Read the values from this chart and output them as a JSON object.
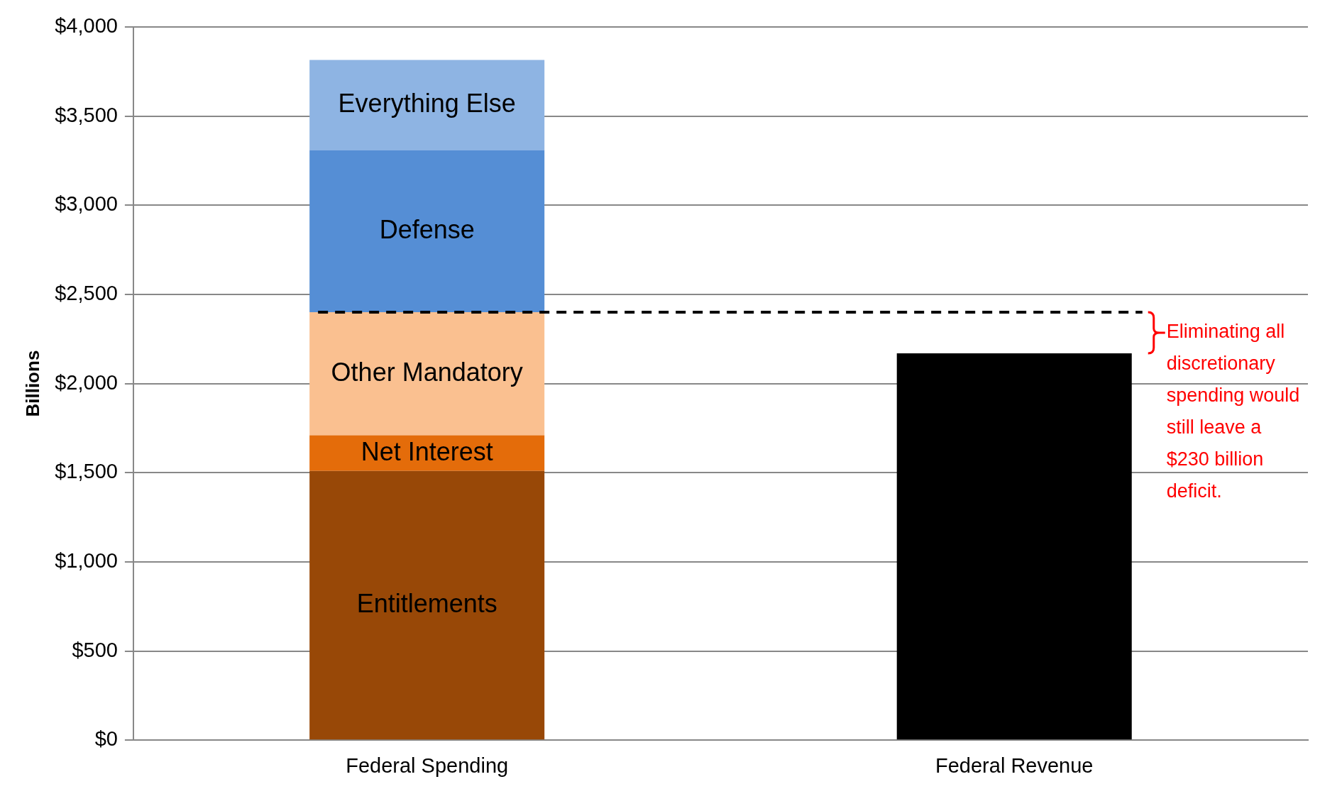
{
  "chart_data": {
    "type": "bar",
    "stacked": true,
    "ylabel": "Billions",
    "categories": [
      "Federal Spending",
      "Federal Revenue"
    ],
    "series": [
      {
        "name": "Entitlements",
        "color": "#984807",
        "values": [
          1510,
          null
        ]
      },
      {
        "name": "Net Interest",
        "color": "#e46c0a",
        "values": [
          200,
          null
        ]
      },
      {
        "name": "Other Mandatory",
        "color": "#fac090",
        "values": [
          690,
          null
        ]
      },
      {
        "name": "Defense",
        "color": "#558ed5",
        "values": [
          910,
          null
        ]
      },
      {
        "name": "Everything Else",
        "color": "#8eb4e3",
        "values": [
          505,
          null
        ]
      },
      {
        "color": "#000000",
        "values": [
          null,
          2170
        ]
      }
    ],
    "ylim": [
      0,
      4000
    ],
    "yticks": [
      {
        "value": 0,
        "label": "$0"
      },
      {
        "value": 500,
        "label": "$500"
      },
      {
        "value": 1000,
        "label": "$1,000"
      },
      {
        "value": 1500,
        "label": "$1,500"
      },
      {
        "value": 2000,
        "label": "$2,000"
      },
      {
        "value": 2500,
        "label": "$2,500"
      },
      {
        "value": 3000,
        "label": "$3,000"
      },
      {
        "value": 3500,
        "label": "$3,500"
      },
      {
        "value": 4000,
        "label": "$4,000"
      }
    ],
    "grid": "y",
    "legend": false,
    "ref_lines": [
      {
        "axis": "y",
        "value": 2400,
        "color": "#000000",
        "line_style": "dashed"
      }
    ],
    "annotations": [
      "Eliminating all discretionary spending would still leave a $230 billion deficit."
    ]
  }
}
